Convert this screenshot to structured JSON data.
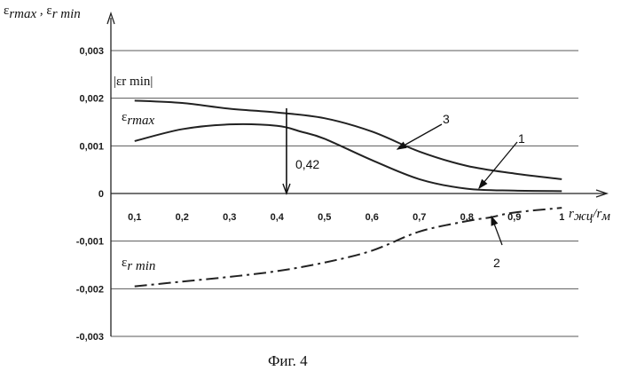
{
  "chart_data": {
    "type": "line",
    "title": "",
    "ylabel": "εrmax , εr min",
    "xlabel": "rжц/rм",
    "xlim": [
      0.05,
      1.05
    ],
    "ylim": [
      -0.003,
      0.003
    ],
    "xticks": [
      "0,1",
      "0,2",
      "0,3",
      "0,4",
      "0,5",
      "0,6",
      "0,7",
      "0,8",
      "0,9",
      "1"
    ],
    "yticks": [
      "0,003",
      "0,002",
      "0,001",
      "0",
      "-0,001",
      "-0,002",
      "-0,003"
    ],
    "grid": "horizontal",
    "series": [
      {
        "name": "|εr min|",
        "style": "solid",
        "x": [
          0.1,
          0.2,
          0.3,
          0.4,
          0.5,
          0.6,
          0.7,
          0.8,
          0.9,
          1.0
        ],
        "y": [
          0.00195,
          0.0019,
          0.00178,
          0.0017,
          0.00158,
          0.0013,
          0.00088,
          0.00058,
          0.00042,
          0.0003
        ]
      },
      {
        "name": "εrmax",
        "style": "solid",
        "x": [
          0.1,
          0.2,
          0.3,
          0.4,
          0.45,
          0.5,
          0.6,
          0.7,
          0.8,
          0.9,
          1.0
        ],
        "y": [
          0.0011,
          0.00135,
          0.00145,
          0.00142,
          0.0013,
          0.00115,
          0.0007,
          0.0003,
          0.0001,
          6e-05,
          5e-05
        ]
      },
      {
        "name": "εr min",
        "style": "dash-dot",
        "x": [
          0.1,
          0.2,
          0.3,
          0.4,
          0.5,
          0.6,
          0.7,
          0.8,
          0.85,
          0.9,
          1.0
        ],
        "y": [
          -0.00195,
          -0.00185,
          -0.00175,
          -0.00163,
          -0.00145,
          -0.0012,
          -0.0008,
          -0.00058,
          -0.0005,
          -0.0004,
          -0.0003
        ]
      }
    ],
    "annotations": {
      "vline_label": "0,42",
      "vline_x": 0.42,
      "curve_numbers": [
        "1",
        "2",
        "3"
      ]
    },
    "labels": {
      "abs_min_base": "ε",
      "abs_min_sub": "r min",
      "max_base": "ε",
      "max_sub": "rmax",
      "min_base": "ε",
      "min_sub": "r min",
      "yaxis_a_base": "ε",
      "yaxis_a_sub": "rmax",
      "yaxis_sep": " , ",
      "yaxis_b_base": "ε",
      "yaxis_b_sub": "r min",
      "xaxis_a": "r",
      "xaxis_a_sub": "жц",
      "xaxis_slash": "/",
      "xaxis_b": "r",
      "xaxis_b_sub": "м"
    },
    "caption": "Фиг. 4"
  }
}
